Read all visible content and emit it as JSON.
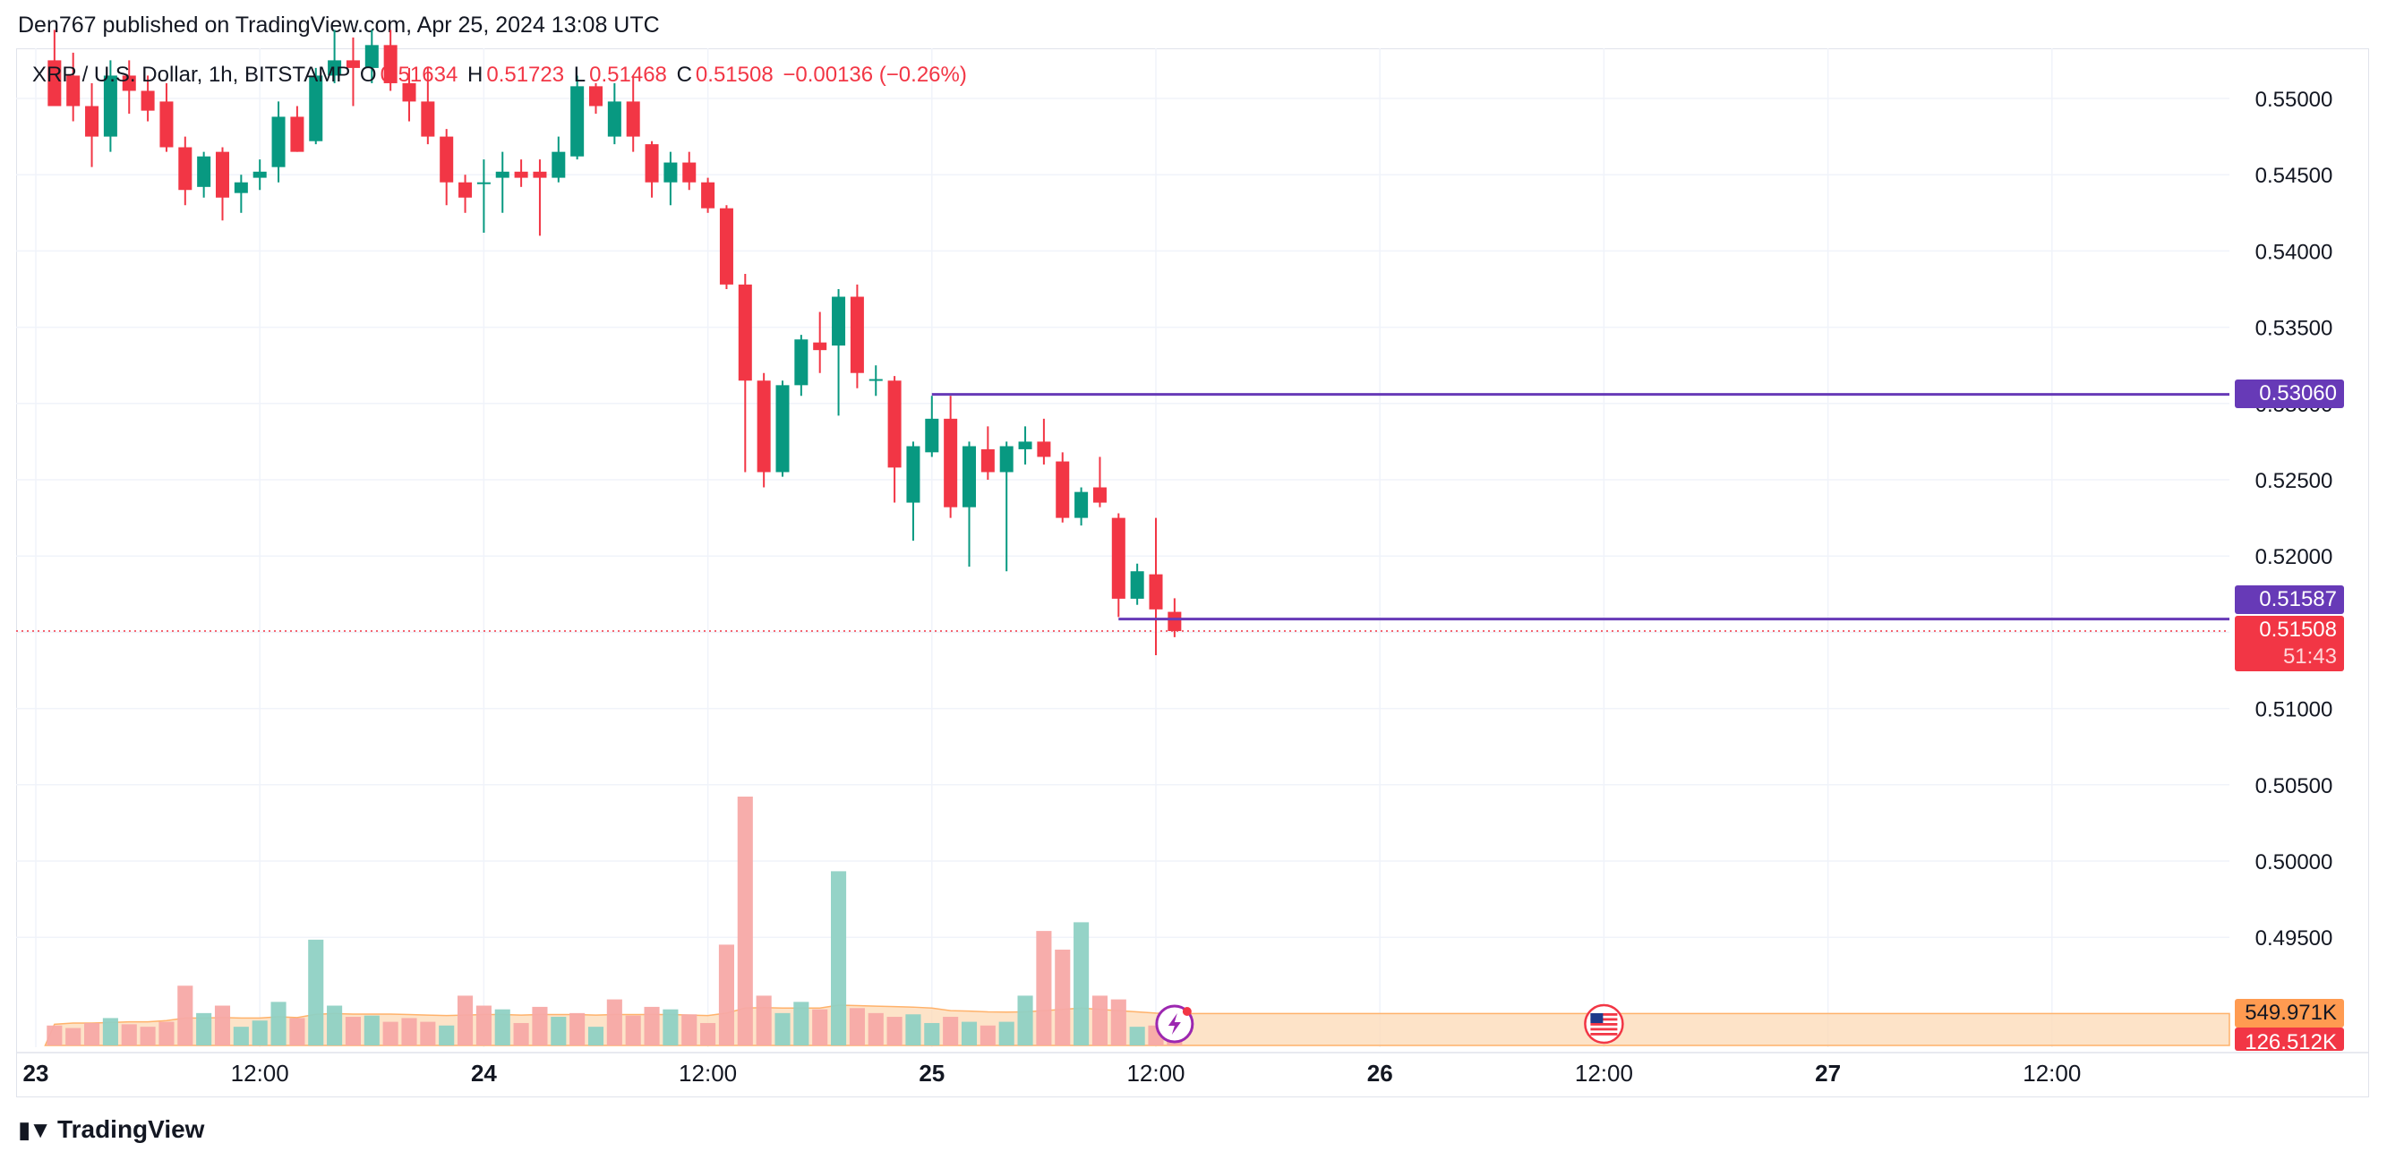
{
  "header": {
    "publisher": "Den767 published on TradingView.com, Apr 25, 2024 13:08 UTC"
  },
  "legend": {
    "symbol": "XRP / U.S. Dollar, 1h, BITSTAMP",
    "o_label": "O",
    "o_value": "0.51634",
    "h_label": "H",
    "h_value": "0.51723",
    "l_label": "L",
    "l_value": "0.51468",
    "c_label": "C",
    "c_value": "0.51508",
    "change": "−0.00136 (−0.26%)"
  },
  "colors": {
    "up": "#089981",
    "down": "#f23645",
    "level_line": "#673ab7",
    "volume_up": "#8fd1c4",
    "volume_down": "#f7a9a7",
    "volume_ma_fill": "#fcd9b6"
  },
  "price_axis": {
    "labels": [
      "0.55000",
      "0.54500",
      "0.54000",
      "0.53500",
      "0.53000",
      "0.52500",
      "0.52000",
      "0.51500",
      "0.51000",
      "0.50500",
      "0.50000",
      "0.49500"
    ],
    "values": [
      0.55,
      0.545,
      0.54,
      0.535,
      0.53,
      0.525,
      0.52,
      0.515,
      0.51,
      0.505,
      0.5,
      0.495
    ]
  },
  "time_axis": {
    "labels": [
      "23",
      "12:00",
      "24",
      "12:00",
      "25",
      "12:00",
      "26",
      "12:00",
      "27",
      "12:00"
    ],
    "bold": [
      true,
      false,
      true,
      false,
      true,
      false,
      true,
      false,
      true,
      false
    ]
  },
  "badges": {
    "level_upper": "0.53060",
    "level_lower": "0.51587",
    "last_price": "0.51508",
    "countdown": "51:43",
    "volume_ma": "549.971K",
    "volume_last": "126.512K"
  },
  "icons": {
    "flash": "lightning-icon",
    "us_event": "us-flag-icon"
  },
  "brand": {
    "name": "TradingView"
  },
  "chart_data": {
    "type": "candlestick",
    "symbol": "XRP / U.S. Dollar",
    "interval": "1h",
    "exchange": "BITSTAMP",
    "y_range": [
      0.4925,
      0.555
    ],
    "x_label_hours": [
      0,
      12,
      24,
      36,
      48,
      60,
      72,
      84,
      96,
      108
    ],
    "horizontal_levels": [
      {
        "value": 0.5306,
        "from_hour": 48
      },
      {
        "value": 0.51587,
        "from_hour": 58
      }
    ],
    "last_price": 0.51508,
    "candles": [
      {
        "t": 1,
        "o": 0.5525,
        "h": 0.5545,
        "l": 0.5495,
        "c": 0.5495
      },
      {
        "t": 2,
        "o": 0.5515,
        "h": 0.553,
        "l": 0.5485,
        "c": 0.5495
      },
      {
        "t": 3,
        "o": 0.5495,
        "h": 0.551,
        "l": 0.5455,
        "c": 0.5475
      },
      {
        "t": 4,
        "o": 0.5475,
        "h": 0.5525,
        "l": 0.5465,
        "c": 0.5515
      },
      {
        "t": 5,
        "o": 0.5515,
        "h": 0.5525,
        "l": 0.549,
        "c": 0.5505
      },
      {
        "t": 6,
        "o": 0.5505,
        "h": 0.5515,
        "l": 0.5485,
        "c": 0.5492
      },
      {
        "t": 7,
        "o": 0.5498,
        "h": 0.551,
        "l": 0.5465,
        "c": 0.5468
      },
      {
        "t": 8,
        "o": 0.5468,
        "h": 0.5475,
        "l": 0.543,
        "c": 0.544
      },
      {
        "t": 9,
        "o": 0.5442,
        "h": 0.5465,
        "l": 0.5435,
        "c": 0.5462
      },
      {
        "t": 10,
        "o": 0.5465,
        "h": 0.5468,
        "l": 0.542,
        "c": 0.5435
      },
      {
        "t": 11,
        "o": 0.5438,
        "h": 0.545,
        "l": 0.5425,
        "c": 0.5445
      },
      {
        "t": 12,
        "o": 0.5448,
        "h": 0.546,
        "l": 0.544,
        "c": 0.5452
      },
      {
        "t": 13,
        "o": 0.5455,
        "h": 0.5498,
        "l": 0.5445,
        "c": 0.5488
      },
      {
        "t": 14,
        "o": 0.5488,
        "h": 0.5495,
        "l": 0.5465,
        "c": 0.5465
      },
      {
        "t": 15,
        "o": 0.5472,
        "h": 0.552,
        "l": 0.547,
        "c": 0.5515
      },
      {
        "t": 16,
        "o": 0.5515,
        "h": 0.5545,
        "l": 0.551,
        "c": 0.5525
      },
      {
        "t": 17,
        "o": 0.5525,
        "h": 0.554,
        "l": 0.5495,
        "c": 0.552
      },
      {
        "t": 18,
        "o": 0.552,
        "h": 0.5545,
        "l": 0.551,
        "c": 0.5535
      },
      {
        "t": 19,
        "o": 0.5535,
        "h": 0.5545,
        "l": 0.5505,
        "c": 0.551
      },
      {
        "t": 20,
        "o": 0.551,
        "h": 0.552,
        "l": 0.5485,
        "c": 0.5498
      },
      {
        "t": 21,
        "o": 0.5498,
        "h": 0.552,
        "l": 0.547,
        "c": 0.5475
      },
      {
        "t": 22,
        "o": 0.5475,
        "h": 0.548,
        "l": 0.543,
        "c": 0.5445
      },
      {
        "t": 23,
        "o": 0.5445,
        "h": 0.545,
        "l": 0.5425,
        "c": 0.5435
      },
      {
        "t": 24,
        "o": 0.5445,
        "h": 0.546,
        "l": 0.5412,
        "c": 0.5445
      },
      {
        "t": 25,
        "o": 0.5448,
        "h": 0.5465,
        "l": 0.5425,
        "c": 0.5452
      },
      {
        "t": 26,
        "o": 0.5452,
        "h": 0.546,
        "l": 0.5442,
        "c": 0.5448
      },
      {
        "t": 27,
        "o": 0.5452,
        "h": 0.546,
        "l": 0.541,
        "c": 0.5448
      },
      {
        "t": 28,
        "o": 0.5448,
        "h": 0.5475,
        "l": 0.5445,
        "c": 0.5465
      },
      {
        "t": 29,
        "o": 0.5462,
        "h": 0.5515,
        "l": 0.546,
        "c": 0.5508
      },
      {
        "t": 30,
        "o": 0.5508,
        "h": 0.551,
        "l": 0.549,
        "c": 0.5495
      },
      {
        "t": 31,
        "o": 0.5475,
        "h": 0.551,
        "l": 0.547,
        "c": 0.5498
      },
      {
        "t": 32,
        "o": 0.5498,
        "h": 0.5515,
        "l": 0.5465,
        "c": 0.5475
      },
      {
        "t": 33,
        "o": 0.547,
        "h": 0.5472,
        "l": 0.5435,
        "c": 0.5445
      },
      {
        "t": 34,
        "o": 0.5445,
        "h": 0.5465,
        "l": 0.543,
        "c": 0.5458
      },
      {
        "t": 35,
        "o": 0.5458,
        "h": 0.5465,
        "l": 0.544,
        "c": 0.5445
      },
      {
        "t": 36,
        "o": 0.5445,
        "h": 0.5448,
        "l": 0.5425,
        "c": 0.5428
      },
      {
        "t": 37,
        "o": 0.5428,
        "h": 0.543,
        "l": 0.5375,
        "c": 0.5378
      },
      {
        "t": 38,
        "o": 0.5378,
        "h": 0.5385,
        "l": 0.5255,
        "c": 0.5315
      },
      {
        "t": 39,
        "o": 0.5315,
        "h": 0.532,
        "l": 0.5245,
        "c": 0.5255
      },
      {
        "t": 40,
        "o": 0.5255,
        "h": 0.5315,
        "l": 0.5252,
        "c": 0.5312
      },
      {
        "t": 41,
        "o": 0.5312,
        "h": 0.5345,
        "l": 0.5305,
        "c": 0.5342
      },
      {
        "t": 42,
        "o": 0.534,
        "h": 0.536,
        "l": 0.532,
        "c": 0.5335
      },
      {
        "t": 43,
        "o": 0.5338,
        "h": 0.5375,
        "l": 0.5292,
        "c": 0.537
      },
      {
        "t": 44,
        "o": 0.537,
        "h": 0.5378,
        "l": 0.531,
        "c": 0.532
      },
      {
        "t": 45,
        "o": 0.5315,
        "h": 0.5325,
        "l": 0.5305,
        "c": 0.5316
      },
      {
        "t": 46,
        "o": 0.5315,
        "h": 0.5318,
        "l": 0.5235,
        "c": 0.5258
      },
      {
        "t": 47,
        "o": 0.5235,
        "h": 0.5275,
        "l": 0.521,
        "c": 0.5272
      },
      {
        "t": 48,
        "o": 0.5268,
        "h": 0.5305,
        "l": 0.5265,
        "c": 0.529
      },
      {
        "t": 49,
        "o": 0.529,
        "h": 0.5305,
        "l": 0.5225,
        "c": 0.5232
      },
      {
        "t": 50,
        "o": 0.5232,
        "h": 0.5275,
        "l": 0.5193,
        "c": 0.5272
      },
      {
        "t": 51,
        "o": 0.527,
        "h": 0.5285,
        "l": 0.525,
        "c": 0.5255
      },
      {
        "t": 52,
        "o": 0.5255,
        "h": 0.5275,
        "l": 0.519,
        "c": 0.5272
      },
      {
        "t": 53,
        "o": 0.527,
        "h": 0.5285,
        "l": 0.526,
        "c": 0.5275
      },
      {
        "t": 54,
        "o": 0.5275,
        "h": 0.529,
        "l": 0.526,
        "c": 0.5265
      },
      {
        "t": 55,
        "o": 0.5262,
        "h": 0.5268,
        "l": 0.5222,
        "c": 0.5225
      },
      {
        "t": 56,
        "o": 0.5225,
        "h": 0.5245,
        "l": 0.522,
        "c": 0.5242
      },
      {
        "t": 57,
        "o": 0.5245,
        "h": 0.5265,
        "l": 0.5232,
        "c": 0.5235
      },
      {
        "t": 58,
        "o": 0.5225,
        "h": 0.5228,
        "l": 0.516,
        "c": 0.5172
      },
      {
        "t": 59,
        "o": 0.5172,
        "h": 0.5195,
        "l": 0.5168,
        "c": 0.519
      },
      {
        "t": 60,
        "o": 0.5188,
        "h": 0.5225,
        "l": 0.5135,
        "c": 0.5165
      },
      {
        "t": 61,
        "o": 0.51634,
        "h": 0.51723,
        "l": 0.51468,
        "c": 0.51508
      }
    ],
    "volume": [
      {
        "t": 1,
        "v": 80,
        "up": false
      },
      {
        "t": 2,
        "v": 70,
        "up": false
      },
      {
        "t": 3,
        "v": 90,
        "up": false
      },
      {
        "t": 4,
        "v": 110,
        "up": true
      },
      {
        "t": 5,
        "v": 85,
        "up": false
      },
      {
        "t": 6,
        "v": 75,
        "up": false
      },
      {
        "t": 7,
        "v": 95,
        "up": false
      },
      {
        "t": 8,
        "v": 240,
        "up": false
      },
      {
        "t": 9,
        "v": 130,
        "up": true
      },
      {
        "t": 10,
        "v": 160,
        "up": false
      },
      {
        "t": 11,
        "v": 75,
        "up": true
      },
      {
        "t": 12,
        "v": 100,
        "up": true
      },
      {
        "t": 13,
        "v": 175,
        "up": true
      },
      {
        "t": 14,
        "v": 110,
        "up": false
      },
      {
        "t": 15,
        "v": 425,
        "up": true
      },
      {
        "t": 16,
        "v": 160,
        "up": true
      },
      {
        "t": 17,
        "v": 115,
        "up": false
      },
      {
        "t": 18,
        "v": 120,
        "up": true
      },
      {
        "t": 19,
        "v": 95,
        "up": false
      },
      {
        "t": 20,
        "v": 110,
        "up": false
      },
      {
        "t": 21,
        "v": 95,
        "up": false
      },
      {
        "t": 22,
        "v": 80,
        "up": true
      },
      {
        "t": 23,
        "v": 200,
        "up": false
      },
      {
        "t": 24,
        "v": 160,
        "up": false
      },
      {
        "t": 25,
        "v": 145,
        "up": true
      },
      {
        "t": 26,
        "v": 90,
        "up": false
      },
      {
        "t": 27,
        "v": 155,
        "up": false
      },
      {
        "t": 28,
        "v": 115,
        "up": true
      },
      {
        "t": 29,
        "v": 130,
        "up": false
      },
      {
        "t": 30,
        "v": 75,
        "up": true
      },
      {
        "t": 31,
        "v": 185,
        "up": false
      },
      {
        "t": 32,
        "v": 120,
        "up": false
      },
      {
        "t": 33,
        "v": 155,
        "up": false
      },
      {
        "t": 34,
        "v": 145,
        "up": true
      },
      {
        "t": 35,
        "v": 125,
        "up": false
      },
      {
        "t": 36,
        "v": 90,
        "up": false
      },
      {
        "t": 37,
        "v": 405,
        "up": false
      },
      {
        "t": 38,
        "v": 1000,
        "up": false
      },
      {
        "t": 39,
        "v": 200,
        "up": false
      },
      {
        "t": 40,
        "v": 130,
        "up": true
      },
      {
        "t": 41,
        "v": 175,
        "up": true
      },
      {
        "t": 42,
        "v": 145,
        "up": false
      },
      {
        "t": 43,
        "v": 700,
        "up": true
      },
      {
        "t": 44,
        "v": 150,
        "up": false
      },
      {
        "t": 45,
        "v": 130,
        "up": false
      },
      {
        "t": 46,
        "v": 115,
        "up": false
      },
      {
        "t": 47,
        "v": 125,
        "up": true
      },
      {
        "t": 48,
        "v": 90,
        "up": true
      },
      {
        "t": 49,
        "v": 115,
        "up": false
      },
      {
        "t": 50,
        "v": 95,
        "up": true
      },
      {
        "t": 51,
        "v": 80,
        "up": false
      },
      {
        "t": 52,
        "v": 95,
        "up": true
      },
      {
        "t": 53,
        "v": 200,
        "up": true
      },
      {
        "t": 54,
        "v": 460,
        "up": false
      },
      {
        "t": 55,
        "v": 385,
        "up": false
      },
      {
        "t": 56,
        "v": 495,
        "up": true
      },
      {
        "t": 57,
        "v": 200,
        "up": false
      },
      {
        "t": 58,
        "v": 185,
        "up": false
      },
      {
        "t": 59,
        "v": 75,
        "up": true
      },
      {
        "t": 60,
        "v": 80,
        "up": false
      },
      {
        "t": 61,
        "v": 60,
        "up": false
      }
    ],
    "volume_ma": [
      85,
      90,
      90,
      92,
      95,
      95,
      100,
      110,
      110,
      112,
      110,
      110,
      115,
      112,
      125,
      128,
      126,
      126,
      126,
      124,
      122,
      120,
      122,
      124,
      124,
      122,
      124,
      124,
      124,
      122,
      124,
      124,
      124,
      124,
      122,
      120,
      130,
      150,
      152,
      150,
      150,
      150,
      162,
      160,
      158,
      156,
      154,
      150,
      140,
      138,
      135,
      134,
      135,
      140,
      145,
      150,
      145,
      140,
      135,
      130,
      128
    ]
  }
}
